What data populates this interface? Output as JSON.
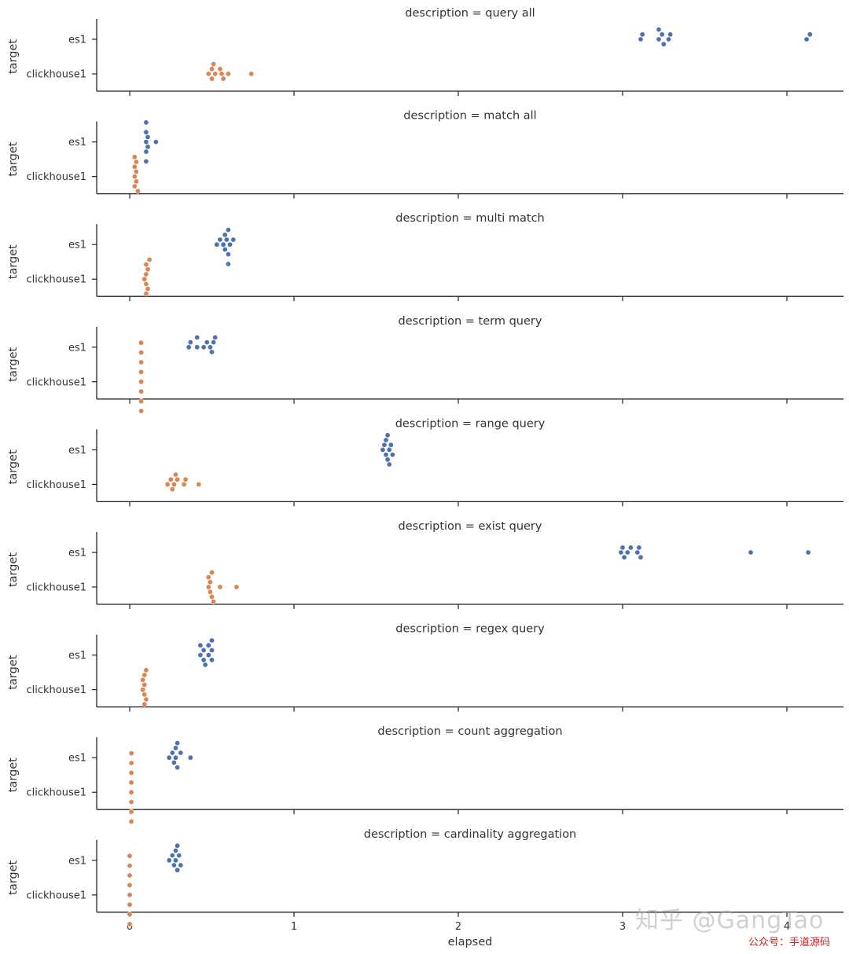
{
  "chart_data": {
    "type": "swarm",
    "xlabel": "elapsed",
    "ylabel": "target",
    "categories": [
      "es1",
      "clickhouse1"
    ],
    "xlim": [
      -0.2,
      4.35
    ],
    "xticks": [
      0,
      1,
      2,
      3,
      4
    ],
    "series_colors": {
      "es1": "#4c72b0",
      "clickhouse1": "#dd8452"
    },
    "facets": [
      {
        "title": "description = query all",
        "show_xticklabels": false,
        "es1": [
          3.11,
          3.12,
          3.22,
          3.22,
          3.24,
          3.25,
          3.28,
          3.29,
          4.12,
          4.14
        ],
        "clickhouse1": [
          0.48,
          0.5,
          0.5,
          0.51,
          0.52,
          0.55,
          0.56,
          0.57,
          0.6,
          0.74
        ]
      },
      {
        "title": "description = match all",
        "show_xticklabels": false,
        "es1": [
          0.1,
          0.1,
          0.1,
          0.1,
          0.1,
          0.11,
          0.11,
          0.16
        ],
        "clickhouse1": [
          0.03,
          0.03,
          0.03,
          0.03,
          0.04,
          0.04,
          0.04,
          0.05
        ]
      },
      {
        "title": "description = multi match",
        "show_xticklabels": false,
        "es1": [
          0.53,
          0.55,
          0.57,
          0.58,
          0.58,
          0.59,
          0.6,
          0.6,
          0.6,
          0.61,
          0.63
        ],
        "clickhouse1": [
          0.09,
          0.1,
          0.1,
          0.1,
          0.1,
          0.11,
          0.11,
          0.12
        ]
      },
      {
        "title": "description = term query",
        "show_xticklabels": false,
        "es1": [
          0.36,
          0.37,
          0.41,
          0.41,
          0.45,
          0.47,
          0.49,
          0.5,
          0.51,
          0.52
        ],
        "clickhouse1": [
          0.07,
          0.07,
          0.07,
          0.07,
          0.07,
          0.07,
          0.07,
          0.07
        ]
      },
      {
        "title": "description = range query",
        "show_xticklabels": false,
        "es1": [
          1.54,
          1.55,
          1.56,
          1.56,
          1.57,
          1.57,
          1.58,
          1.58,
          1.59,
          1.6
        ],
        "clickhouse1": [
          0.23,
          0.25,
          0.26,
          0.27,
          0.28,
          0.29,
          0.33,
          0.34,
          0.42
        ]
      },
      {
        "title": "description = exist query",
        "show_xticklabels": false,
        "es1": [
          2.99,
          3.0,
          3.01,
          3.03,
          3.05,
          3.09,
          3.1,
          3.11,
          3.78,
          4.13
        ],
        "clickhouse1": [
          0.48,
          0.48,
          0.49,
          0.49,
          0.5,
          0.5,
          0.51,
          0.55,
          0.65
        ]
      },
      {
        "title": "description = regex query",
        "show_xticklabels": false,
        "es1": [
          0.43,
          0.43,
          0.45,
          0.45,
          0.46,
          0.48,
          0.48,
          0.5,
          0.5,
          0.5
        ],
        "clickhouse1": [
          0.08,
          0.08,
          0.09,
          0.09,
          0.09,
          0.09,
          0.1,
          0.1
        ]
      },
      {
        "title": "description = count aggregation",
        "show_xticklabels": false,
        "es1": [
          0.24,
          0.26,
          0.27,
          0.28,
          0.28,
          0.29,
          0.29,
          0.31,
          0.37
        ],
        "clickhouse1": [
          0.01,
          0.01,
          0.01,
          0.01,
          0.01,
          0.01,
          0.01,
          0.01
        ]
      },
      {
        "title": "description = cardinality aggregation",
        "show_xticklabels": true,
        "es1": [
          0.24,
          0.26,
          0.27,
          0.28,
          0.28,
          0.29,
          0.29,
          0.3,
          0.31
        ],
        "clickhouse1": [
          0.0,
          0.0,
          0.0,
          0.0,
          0.0,
          0.0,
          0.0,
          0.0
        ]
      }
    ]
  },
  "watermark": {
    "zhihu": "知乎 @GangTao",
    "wechat": "公众号：手道源码"
  }
}
